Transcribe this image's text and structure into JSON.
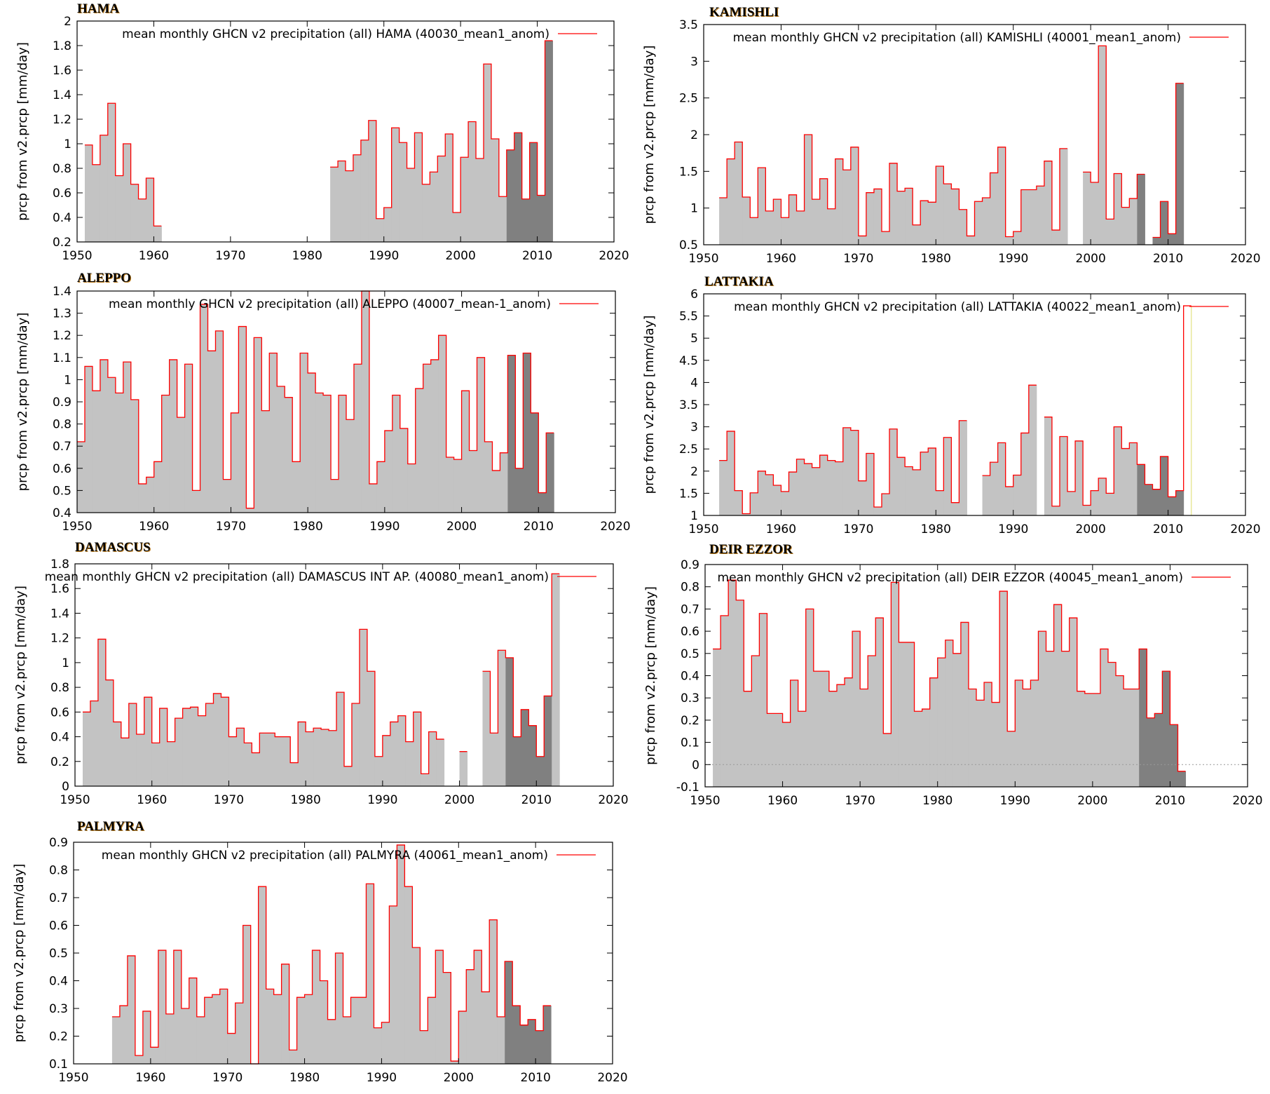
{
  "figure": {
    "ylabel": "prcp from v2.prcp [mm/day]",
    "colors": {
      "fill_light": "#c3c3c3",
      "fill_dark": "#808080",
      "line": "#ff0000",
      "frame": "#000000",
      "zero_line": "#999999",
      "highlight_edge": "#e8e89a"
    }
  },
  "chart_data": [
    {
      "id": "hama",
      "type": "bar",
      "style": "step-histogram",
      "title": "HAMA",
      "legend": "mean monthly GHCN v2 precipitation (all) HAMA (40030_mean1_anom)",
      "legend_position": "top-right",
      "xlabel": "",
      "ylabel": "prcp from v2.prcp [mm/day]",
      "xlim": [
        1950,
        2020
      ],
      "ylim": [
        0.2,
        2.0
      ],
      "xticks": [
        1950,
        1960,
        1970,
        1980,
        1990,
        2000,
        2010,
        2020
      ],
      "yticks": [
        0.2,
        0.4,
        0.6,
        0.8,
        1,
        1.2,
        1.4,
        1.6,
        1.8,
        2
      ],
      "ytick_labels": [
        "0.2",
        "0.4",
        "0.6",
        "0.8",
        "1",
        "1.2",
        "1.4",
        "1.6",
        "1.8",
        "2"
      ],
      "dark_from": 2006,
      "x": [
        1951,
        1952,
        1953,
        1954,
        1955,
        1956,
        1957,
        1958,
        1959,
        1960,
        1983,
        1984,
        1985,
        1986,
        1987,
        1988,
        1989,
        1990,
        1991,
        1992,
        1993,
        1994,
        1995,
        1996,
        1997,
        1998,
        1999,
        2000,
        2001,
        2002,
        2003,
        2004,
        2005,
        2006,
        2007,
        2008,
        2009,
        2010,
        2011
      ],
      "values": [
        0.99,
        0.83,
        1.07,
        1.33,
        0.74,
        1.0,
        0.67,
        0.55,
        0.72,
        0.33,
        0.81,
        0.86,
        0.78,
        0.91,
        1.03,
        1.19,
        0.39,
        0.48,
        1.13,
        1.01,
        0.8,
        1.09,
        0.67,
        0.77,
        0.9,
        1.08,
        0.44,
        0.89,
        1.18,
        0.88,
        1.65,
        1.04,
        0.57,
        0.95,
        1.09,
        0.55,
        1.01,
        0.58,
        1.84
      ]
    },
    {
      "id": "kamishli",
      "type": "bar",
      "style": "step-histogram",
      "title": "KAMISHLI",
      "legend": "mean monthly GHCN v2 precipitation (all) KAMISHLI (40001_mean1_anom)",
      "legend_position": "top-right",
      "xlabel": "",
      "ylabel": "prcp from v2.prcp [mm/day]",
      "xlim": [
        1950,
        2020
      ],
      "ylim": [
        0.5,
        3.5
      ],
      "xticks": [
        1950,
        1960,
        1970,
        1980,
        1990,
        2000,
        2010,
        2020
      ],
      "yticks": [
        0.5,
        1,
        1.5,
        2,
        2.5,
        3,
        3.5
      ],
      "ytick_labels": [
        "0.5",
        "1",
        "1.5",
        "2",
        "2.5",
        "3",
        "3.5"
      ],
      "dark_from": 2006,
      "x": [
        1952,
        1953,
        1954,
        1955,
        1956,
        1957,
        1958,
        1959,
        1960,
        1961,
        1962,
        1963,
        1964,
        1965,
        1966,
        1967,
        1968,
        1969,
        1970,
        1971,
        1972,
        1973,
        1974,
        1975,
        1976,
        1977,
        1978,
        1979,
        1980,
        1981,
        1982,
        1983,
        1984,
        1985,
        1986,
        1987,
        1988,
        1989,
        1990,
        1991,
        1992,
        1993,
        1994,
        1995,
        1996,
        1999,
        2000,
        2001,
        2002,
        2003,
        2004,
        2005,
        2006,
        2008,
        2009,
        2010,
        2011
      ],
      "values": [
        1.14,
        1.67,
        1.9,
        1.15,
        0.87,
        1.55,
        0.96,
        1.12,
        0.87,
        1.18,
        0.96,
        2.0,
        1.12,
        1.4,
        0.99,
        1.67,
        1.52,
        1.83,
        0.62,
        1.21,
        1.26,
        0.68,
        1.61,
        1.23,
        1.27,
        0.77,
        1.1,
        1.08,
        1.57,
        1.33,
        1.26,
        0.98,
        0.62,
        1.09,
        1.14,
        1.48,
        1.83,
        0.61,
        0.68,
        1.25,
        1.25,
        1.3,
        1.64,
        0.7,
        1.81,
        1.49,
        1.35,
        3.21,
        0.85,
        1.47,
        1.01,
        1.13,
        1.46,
        0.6,
        1.09,
        0.65,
        2.7
      ]
    },
    {
      "id": "aleppo",
      "type": "bar",
      "style": "step-histogram",
      "title": "ALEPPO",
      "legend": "mean monthly GHCN v2 precipitation (all) ALEPPO (40007_mean-1_anom)",
      "legend_position": "top-right",
      "xlabel": "",
      "ylabel": "prcp from v2.prcp [mm/day]",
      "xlim": [
        1950,
        2020
      ],
      "ylim": [
        0.4,
        1.4
      ],
      "xticks": [
        1950,
        1960,
        1970,
        1980,
        1990,
        2000,
        2010,
        2020
      ],
      "yticks": [
        0.4,
        0.5,
        0.6,
        0.7,
        0.8,
        0.9,
        1,
        1.1,
        1.2,
        1.3,
        1.4
      ],
      "ytick_labels": [
        "0.4",
        "0.5",
        "0.6",
        "0.7",
        "0.8",
        "0.9",
        "1",
        "1.1",
        "1.2",
        "1.3",
        "1.4"
      ],
      "dark_from": 2006,
      "x": [
        1950,
        1951,
        1952,
        1953,
        1954,
        1955,
        1956,
        1957,
        1958,
        1959,
        1960,
        1961,
        1962,
        1963,
        1964,
        1965,
        1966,
        1967,
        1968,
        1969,
        1970,
        1971,
        1972,
        1973,
        1974,
        1975,
        1976,
        1977,
        1978,
        1979,
        1980,
        1981,
        1982,
        1983,
        1984,
        1985,
        1986,
        1987,
        1988,
        1989,
        1990,
        1991,
        1992,
        1993,
        1994,
        1995,
        1996,
        1997,
        1998,
        1999,
        2000,
        2001,
        2002,
        2003,
        2004,
        2005,
        2006,
        2007,
        2008,
        2009,
        2010,
        2011
      ],
      "values": [
        0.72,
        1.06,
        0.95,
        1.09,
        1.01,
        0.94,
        1.08,
        0.91,
        0.53,
        0.56,
        0.63,
        0.93,
        1.09,
        0.83,
        1.07,
        0.5,
        1.34,
        1.13,
        1.22,
        0.55,
        0.85,
        1.24,
        0.42,
        1.19,
        0.86,
        1.12,
        0.97,
        0.92,
        0.63,
        1.12,
        1.03,
        0.94,
        0.93,
        0.55,
        0.93,
        0.82,
        1.07,
        1.4,
        0.53,
        0.63,
        0.77,
        0.93,
        0.78,
        0.62,
        0.96,
        1.07,
        1.09,
        1.2,
        0.65,
        0.64,
        0.95,
        0.68,
        1.1,
        0.72,
        0.59,
        0.67,
        1.11,
        0.6,
        1.12,
        0.85,
        0.49,
        0.76
      ]
    },
    {
      "id": "lattakia",
      "type": "bar",
      "style": "step-histogram",
      "title": "LATTAKIA",
      "legend": "mean monthly GHCN v2 precipitation (all) LATTAKIA (40022_mean1_anom)",
      "legend_position": "top-right",
      "xlabel": "",
      "ylabel": "prcp from v2.prcp [mm/day]",
      "xlim": [
        1950,
        2020
      ],
      "ylim": [
        1,
        6
      ],
      "xticks": [
        1950,
        1960,
        1970,
        1980,
        1990,
        2000,
        2010,
        2020
      ],
      "yticks": [
        1,
        1.5,
        2,
        2.5,
        3,
        3.5,
        4,
        4.5,
        5,
        5.5,
        6
      ],
      "ytick_labels": [
        "1",
        "1.5",
        "2",
        "2.5",
        "3",
        "3.5",
        "4",
        "4.5",
        "5",
        "5.5",
        "6"
      ],
      "dark_from": 2006,
      "unfilled_from": 2012,
      "x": [
        1952,
        1953,
        1954,
        1955,
        1956,
        1957,
        1958,
        1959,
        1960,
        1961,
        1962,
        1963,
        1964,
        1965,
        1966,
        1967,
        1968,
        1969,
        1970,
        1971,
        1972,
        1973,
        1974,
        1975,
        1976,
        1977,
        1978,
        1979,
        1980,
        1981,
        1982,
        1983,
        1986,
        1987,
        1988,
        1989,
        1990,
        1991,
        1992,
        1994,
        1995,
        1996,
        1997,
        1998,
        1999,
        2000,
        2001,
        2002,
        2003,
        2004,
        2005,
        2006,
        2007,
        2008,
        2009,
        2010,
        2011,
        2012
      ],
      "values": [
        2.24,
        2.9,
        1.56,
        1.04,
        1.51,
        2.0,
        1.92,
        1.68,
        1.54,
        1.98,
        2.27,
        2.17,
        2.08,
        2.36,
        2.24,
        2.21,
        2.98,
        2.92,
        1.78,
        2.4,
        1.19,
        1.49,
        2.95,
        2.31,
        2.1,
        2.03,
        2.43,
        2.52,
        1.56,
        2.76,
        1.29,
        3.14,
        1.9,
        2.2,
        2.64,
        1.65,
        1.91,
        2.86,
        3.94,
        3.22,
        1.21,
        2.78,
        1.54,
        2.68,
        1.23,
        1.56,
        1.84,
        1.5,
        3.0,
        2.51,
        2.64,
        2.15,
        1.7,
        1.59,
        2.33,
        1.42,
        1.56,
        5.73
      ]
    },
    {
      "id": "damascus",
      "type": "bar",
      "style": "step-histogram",
      "title": "DAMASCUS",
      "legend": "mean monthly GHCN v2 precipitation (all) DAMASCUS INT AP. (40080_mean1_anom)",
      "legend_position": "top-right",
      "xlabel": "",
      "ylabel": "prcp from v2.prcp [mm/day]",
      "xlim": [
        1950,
        2020
      ],
      "ylim": [
        0,
        1.8
      ],
      "xticks": [
        1950,
        1960,
        1970,
        1980,
        1990,
        2000,
        2010,
        2020
      ],
      "yticks": [
        0,
        0.2,
        0.4,
        0.6,
        0.8,
        1,
        1.2,
        1.4,
        1.6,
        1.8
      ],
      "ytick_labels": [
        "0",
        "0.2",
        "0.4",
        "0.6",
        "0.8",
        "1",
        "1.2",
        "1.4",
        "1.6",
        "1.8"
      ],
      "dark_from": 2006,
      "dark_to": 2011,
      "x": [
        1951,
        1952,
        1953,
        1954,
        1955,
        1956,
        1957,
        1958,
        1959,
        1960,
        1961,
        1962,
        1963,
        1964,
        1965,
        1966,
        1967,
        1968,
        1969,
        1970,
        1971,
        1972,
        1973,
        1974,
        1975,
        1976,
        1977,
        1978,
        1979,
        1980,
        1981,
        1982,
        1983,
        1984,
        1985,
        1986,
        1987,
        1988,
        1989,
        1990,
        1991,
        1992,
        1993,
        1994,
        1995,
        1996,
        1997,
        2000,
        2003,
        2004,
        2005,
        2006,
        2007,
        2008,
        2009,
        2010,
        2011,
        2012
      ],
      "values": [
        0.6,
        0.69,
        1.19,
        0.86,
        0.52,
        0.39,
        0.67,
        0.42,
        0.72,
        0.35,
        0.63,
        0.36,
        0.55,
        0.63,
        0.64,
        0.57,
        0.67,
        0.75,
        0.72,
        0.4,
        0.47,
        0.35,
        0.27,
        0.43,
        0.43,
        0.4,
        0.4,
        0.19,
        0.52,
        0.44,
        0.47,
        0.46,
        0.45,
        0.76,
        0.16,
        0.67,
        1.27,
        0.93,
        0.24,
        0.41,
        0.52,
        0.57,
        0.36,
        0.6,
        0.1,
        0.44,
        0.38,
        0.28,
        0.93,
        0.43,
        1.1,
        1.04,
        0.4,
        0.62,
        0.49,
        0.24,
        0.73,
        1.72
      ]
    },
    {
      "id": "deir-ezzor",
      "type": "bar",
      "style": "step-histogram",
      "title": "DEIR EZZOR",
      "legend": "mean monthly GHCN v2 precipitation (all) DEIR EZZOR (40045_mean1_anom)",
      "legend_position": "top-right",
      "xlabel": "",
      "ylabel": "prcp from v2.prcp [mm/day]",
      "xlim": [
        1950,
        2020
      ],
      "ylim": [
        -0.1,
        0.9
      ],
      "xticks": [
        1950,
        1960,
        1970,
        1980,
        1990,
        2000,
        2010,
        2020
      ],
      "yticks": [
        -0.1,
        0,
        0.1,
        0.2,
        0.3,
        0.4,
        0.5,
        0.6,
        0.7,
        0.8,
        0.9
      ],
      "ytick_labels": [
        "-0.1",
        "0",
        "0.1",
        "0.2",
        "0.3",
        "0.4",
        "0.5",
        "0.6",
        "0.7",
        "0.8",
        "0.9"
      ],
      "zero_line": true,
      "dark_from": 2006,
      "x": [
        1951,
        1952,
        1953,
        1954,
        1955,
        1956,
        1957,
        1958,
        1959,
        1960,
        1961,
        1962,
        1963,
        1964,
        1965,
        1966,
        1967,
        1968,
        1969,
        1970,
        1971,
        1972,
        1973,
        1974,
        1975,
        1976,
        1977,
        1978,
        1979,
        1980,
        1981,
        1982,
        1983,
        1984,
        1985,
        1986,
        1987,
        1988,
        1989,
        1990,
        1991,
        1992,
        1993,
        1994,
        1995,
        1996,
        1997,
        1998,
        1999,
        2000,
        2001,
        2002,
        2003,
        2004,
        2005,
        2006,
        2007,
        2008,
        2009,
        2010,
        2011
      ],
      "values": [
        0.52,
        0.67,
        0.83,
        0.74,
        0.33,
        0.49,
        0.68,
        0.23,
        0.23,
        0.19,
        0.38,
        0.24,
        0.7,
        0.42,
        0.42,
        0.33,
        0.36,
        0.39,
        0.6,
        0.34,
        0.49,
        0.66,
        0.14,
        0.82,
        0.55,
        0.55,
        0.24,
        0.25,
        0.39,
        0.48,
        0.56,
        0.5,
        0.64,
        0.34,
        0.29,
        0.37,
        0.28,
        0.78,
        0.15,
        0.38,
        0.34,
        0.38,
        0.6,
        0.51,
        0.72,
        0.51,
        0.66,
        0.33,
        0.32,
        0.32,
        0.52,
        0.46,
        0.4,
        0.34,
        0.34,
        0.52,
        0.21,
        0.23,
        0.42,
        0.18,
        -0.03
      ]
    },
    {
      "id": "palmyra",
      "type": "bar",
      "style": "step-histogram",
      "title": "PALMYRA",
      "legend": "mean monthly GHCN v2 precipitation (all) PALMYRA (40061_mean1_anom)",
      "legend_position": "top-right",
      "xlabel": "",
      "ylabel": "prcp from v2.prcp [mm/day]",
      "xlim": [
        1950,
        2020
      ],
      "ylim": [
        0.1,
        0.9
      ],
      "xticks": [
        1950,
        1960,
        1970,
        1980,
        1990,
        2000,
        2010,
        2020
      ],
      "yticks": [
        0.1,
        0.2,
        0.3,
        0.4,
        0.5,
        0.6,
        0.7,
        0.8,
        0.9
      ],
      "ytick_labels": [
        "0.1",
        "0.2",
        "0.3",
        "0.4",
        "0.5",
        "0.6",
        "0.7",
        "0.8",
        "0.9"
      ],
      "dark_from": 2006,
      "x": [
        1955,
        1956,
        1957,
        1958,
        1959,
        1960,
        1961,
        1962,
        1963,
        1964,
        1965,
        1966,
        1967,
        1968,
        1969,
        1970,
        1971,
        1972,
        1973,
        1974,
        1975,
        1976,
        1977,
        1978,
        1979,
        1980,
        1981,
        1982,
        1983,
        1984,
        1985,
        1986,
        1987,
        1988,
        1989,
        1990,
        1991,
        1992,
        1993,
        1994,
        1995,
        1996,
        1997,
        1998,
        1999,
        2000,
        2001,
        2002,
        2003,
        2004,
        2005,
        2006,
        2007,
        2008,
        2009,
        2010,
        2011
      ],
      "values": [
        0.27,
        0.31,
        0.49,
        0.13,
        0.29,
        0.16,
        0.51,
        0.28,
        0.51,
        0.3,
        0.41,
        0.27,
        0.34,
        0.35,
        0.37,
        0.21,
        0.32,
        0.6,
        0.1,
        0.74,
        0.37,
        0.35,
        0.46,
        0.15,
        0.34,
        0.35,
        0.51,
        0.4,
        0.26,
        0.5,
        0.27,
        0.34,
        0.34,
        0.75,
        0.23,
        0.25,
        0.67,
        0.89,
        0.74,
        0.52,
        0.22,
        0.34,
        0.51,
        0.43,
        0.11,
        0.29,
        0.44,
        0.51,
        0.36,
        0.62,
        0.27,
        0.47,
        0.31,
        0.24,
        0.26,
        0.22,
        0.31
      ]
    }
  ]
}
